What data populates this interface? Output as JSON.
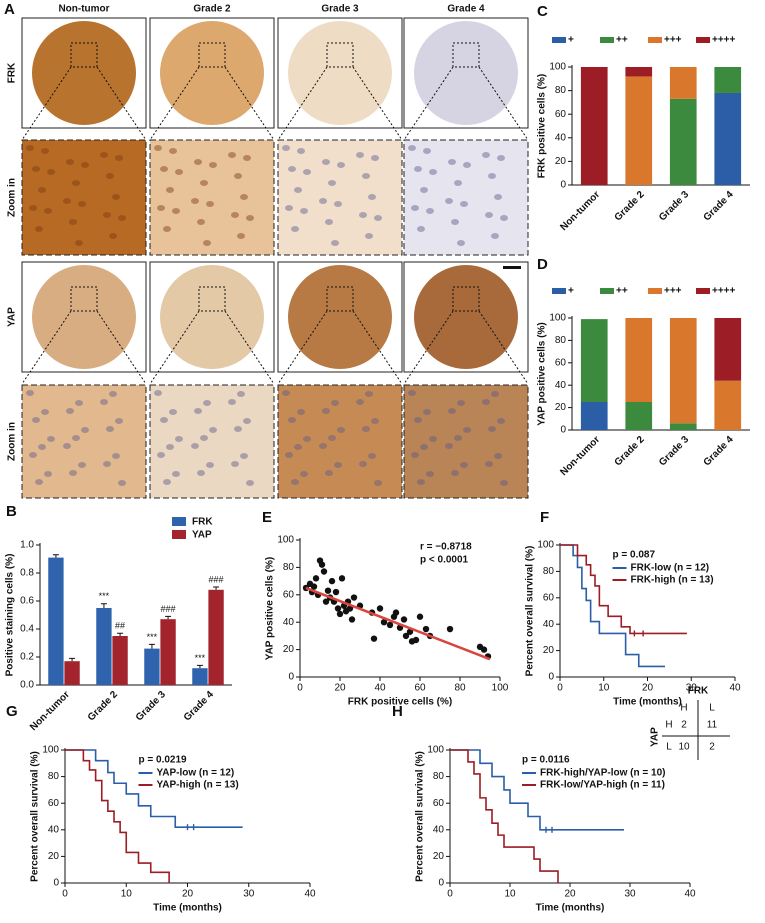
{
  "panel_a": {
    "letter": "A",
    "columns": [
      "Non-tumor",
      "Grade 2",
      "Grade 3",
      "Grade 4"
    ],
    "rows": [
      "FRK",
      "Zoom in",
      "YAP",
      "Zoom in"
    ]
  },
  "chart_data": [
    {
      "panel": "B",
      "type": "bar",
      "ylabel": "Positive staining cells (%)",
      "categories": [
        "Non-tumor",
        "Grade 2",
        "Grade 3",
        "Grade 4"
      ],
      "series": [
        {
          "name": "FRK",
          "color": "#2f63ad",
          "values": [
            0.91,
            0.55,
            0.26,
            0.12
          ],
          "errors": [
            0.02,
            0.03,
            0.03,
            0.02
          ],
          "annotations": [
            null,
            "***",
            "***",
            "***"
          ]
        },
        {
          "name": "YAP",
          "color": "#a3242c",
          "values": [
            0.17,
            0.35,
            0.47,
            0.68
          ],
          "errors": [
            0.02,
            0.02,
            0.02,
            0.02
          ],
          "annotations": [
            null,
            "##",
            "###",
            "###"
          ]
        }
      ],
      "ylim": [
        0,
        1
      ],
      "yticks": [
        {
          "value": 0,
          "label": "0.0"
        },
        0.2,
        0.4,
        0.6,
        0.8,
        {
          "value": 1,
          "label": "1.0"
        }
      ]
    },
    {
      "panel": "C",
      "type": "stacked-bar",
      "ylabel": "FRK positive cells (%)",
      "categories": [
        "Non-tumor",
        "Grade 2",
        "Grade 3",
        "Grade 4"
      ],
      "series": [
        {
          "name": "+",
          "color": "#2b5ea7",
          "values": [
            0,
            0,
            0,
            78
          ]
        },
        {
          "name": "++",
          "color": "#3c8a3e",
          "values": [
            0,
            0,
            73,
            22
          ]
        },
        {
          "name": "+++",
          "color": "#d9782d",
          "values": [
            0,
            92,
            27,
            0
          ]
        },
        {
          "name": "++++",
          "color": "#9c1d26",
          "values": [
            100,
            8,
            0,
            0
          ]
        }
      ],
      "ylim": [
        0,
        100
      ],
      "yticks": [
        0,
        20,
        40,
        60,
        80,
        100
      ]
    },
    {
      "panel": "D",
      "type": "stacked-bar",
      "ylabel": "YAP positive cells (%)",
      "categories": [
        "Non-tumor",
        "Grade 2",
        "Grade 3",
        "Grade 4"
      ],
      "series": [
        {
          "name": "+",
          "color": "#2b5ea7",
          "values": [
            25,
            0,
            0,
            0
          ]
        },
        {
          "name": "++",
          "color": "#3c8a3e",
          "values": [
            74,
            25,
            6,
            0
          ]
        },
        {
          "name": "+++",
          "color": "#d9782d",
          "values": [
            0,
            75,
            94,
            44
          ]
        },
        {
          "name": "++++",
          "color": "#9c1d26",
          "values": [
            0,
            0,
            0,
            56
          ]
        }
      ],
      "ylim": [
        0,
        100
      ],
      "yticks": [
        0,
        20,
        40,
        60,
        80,
        100
      ]
    },
    {
      "panel": "E",
      "type": "scatter",
      "xlabel": "FRK positive cells (%)",
      "ylabel": "YAP positive cells (%)",
      "x": [
        3,
        5,
        6,
        7,
        8,
        9,
        10,
        11,
        12,
        13,
        14,
        15,
        16,
        17,
        18,
        19,
        20,
        21,
        22,
        23,
        24,
        25,
        26,
        27,
        30,
        36,
        37,
        40,
        42,
        45,
        47,
        48,
        50,
        52,
        53,
        55,
        56,
        58,
        60,
        63,
        65,
        75,
        90,
        92,
        94
      ],
      "y": [
        65,
        68,
        62,
        66,
        72,
        60,
        85,
        82,
        77,
        55,
        63,
        58,
        70,
        55,
        62,
        50,
        46,
        72,
        52,
        48,
        55,
        50,
        42,
        58,
        52,
        47,
        28,
        50,
        40,
        38,
        44,
        47,
        36,
        42,
        30,
        33,
        26,
        27,
        44,
        35,
        30,
        35,
        22,
        20,
        15
      ],
      "color": "#111111",
      "fit": {
        "x": [
          3,
          95
        ],
        "y": [
          65,
          13
        ],
        "color": "#d9463f"
      },
      "annotations": [
        "r = −0.8718",
        "p < 0.0001"
      ],
      "xlim": [
        0,
        100
      ],
      "xticks": [
        0,
        20,
        40,
        60,
        80,
        100
      ],
      "ylim": [
        0,
        100
      ],
      "yticks": [
        0,
        20,
        40,
        60,
        80,
        100
      ]
    },
    {
      "panel": "F",
      "type": "survival",
      "xlabel": "Time (months)",
      "ylabel": "Percent overall survival (%)",
      "p": "p = 0.087",
      "series": [
        {
          "name": "FRK-low (n = 12)",
          "color": "#2b5ea7",
          "x": [
            0,
            3,
            4,
            5,
            6,
            7,
            9,
            15,
            18,
            24
          ],
          "values": [
            100,
            92,
            83,
            67,
            58,
            42,
            33,
            17,
            8,
            8
          ]
        },
        {
          "name": "FRK-high (n = 13)",
          "color": "#9c1d26",
          "x": [
            0,
            4,
            6,
            7,
            8,
            9,
            11,
            14,
            16,
            29
          ],
          "values": [
            100,
            92,
            85,
            77,
            69,
            54,
            46,
            38,
            33,
            33
          ],
          "censored": {
            "x": [
              17,
              19
            ],
            "y": [
              33,
              33
            ]
          }
        }
      ],
      "xlim": [
        0,
        40
      ],
      "xticks": [
        0,
        10,
        20,
        30,
        40
      ],
      "ylim": [
        0,
        100
      ],
      "yticks": [
        0,
        20,
        40,
        60,
        80,
        100
      ]
    },
    {
      "panel": "G",
      "type": "survival",
      "xlabel": "Time (months)",
      "ylabel": "Percent overall survival (%)",
      "p": "p = 0.0219",
      "series": [
        {
          "name": "YAP-low (n = 12)",
          "color": "#2b5ea7",
          "x": [
            0,
            5,
            7,
            8,
            10,
            12,
            14,
            18,
            29
          ],
          "values": [
            100,
            92,
            83,
            75,
            67,
            58,
            50,
            42,
            42
          ],
          "censored": {
            "x": [
              20,
              21
            ],
            "y": [
              42,
              42
            ]
          }
        },
        {
          "name": "YAP-high (n = 13)",
          "color": "#9c1d26",
          "x": [
            0,
            3,
            4,
            5,
            6,
            7,
            8,
            9,
            10,
            12,
            14,
            17
          ],
          "values": [
            100,
            92,
            85,
            77,
            62,
            54,
            46,
            38,
            23,
            15,
            8,
            0
          ]
        }
      ],
      "xlim": [
        0,
        40
      ],
      "xticks": [
        0,
        10,
        20,
        30,
        40
      ],
      "ylim": [
        0,
        100
      ],
      "yticks": [
        0,
        20,
        40,
        60,
        80,
        100
      ]
    },
    {
      "panel": "H",
      "type": "survival",
      "xlabel": "Time (months)",
      "ylabel": "Percent overall survival (%)",
      "p": "p = 0.0116",
      "series": [
        {
          "name": "FRK-high/YAP-low (n = 10)",
          "color": "#2b5ea7",
          "x": [
            0,
            5,
            7,
            9,
            10,
            13,
            15,
            29
          ],
          "values": [
            100,
            90,
            80,
            70,
            60,
            50,
            40,
            40
          ],
          "censored": {
            "x": [
              16,
              17
            ],
            "y": [
              40,
              40
            ]
          }
        },
        {
          "name": "FRK-low/YAP-high (n = 11)",
          "color": "#9c1d26",
          "x": [
            0,
            3,
            4,
            5,
            6,
            7,
            8,
            9,
            14,
            15,
            18
          ],
          "values": [
            100,
            91,
            82,
            64,
            55,
            45,
            36,
            27,
            18,
            9,
            0
          ]
        }
      ],
      "xlim": [
        0,
        40
      ],
      "xticks": [
        0,
        10,
        20,
        30,
        40
      ],
      "ylim": [
        0,
        100
      ],
      "yticks": [
        0,
        20,
        40,
        60,
        80,
        100
      ]
    }
  ],
  "table_h": {
    "title": "FRK",
    "columns": [
      "H",
      "L"
    ],
    "row_title": "YAP",
    "rows": [
      [
        "H",
        2,
        11
      ],
      [
        "L",
        10,
        2
      ]
    ]
  }
}
